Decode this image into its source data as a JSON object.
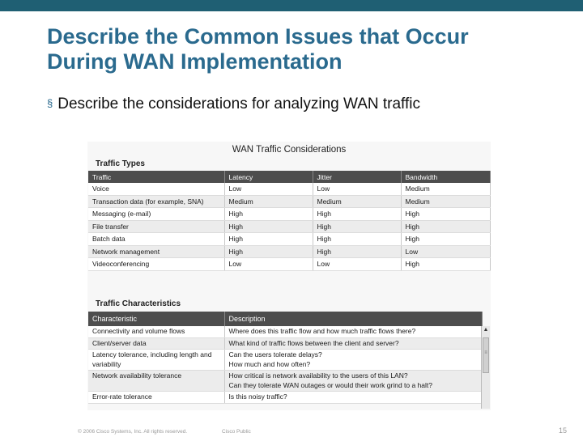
{
  "title_lines": [
    "Describe the Common Issues that Occur",
    "During WAN Implementation"
  ],
  "bullet": {
    "marker": "§",
    "text": "Describe the considerations for analyzing WAN traffic"
  },
  "panel": {
    "title": "WAN Traffic Considerations",
    "traffic_types": {
      "label": "Traffic Types",
      "headers": [
        "Traffic",
        "Latency",
        "Jitter",
        "Bandwidth"
      ],
      "rows": [
        [
          "Voice",
          "Low",
          "Low",
          "Medium"
        ],
        [
          "Transaction data (for example, SNA)",
          "Medium",
          "Medium",
          "Medium"
        ],
        [
          "Messaging (e-mail)",
          "High",
          "High",
          "High"
        ],
        [
          "File transfer",
          "High",
          "High",
          "High"
        ],
        [
          "Batch data",
          "High",
          "High",
          "High"
        ],
        [
          "Network management",
          "High",
          "High",
          "Low"
        ],
        [
          "Videoconferencing",
          "Low",
          "Low",
          "High"
        ]
      ]
    },
    "traffic_characteristics": {
      "label": "Traffic Characteristics",
      "headers": [
        "Characteristic",
        "Description"
      ],
      "rows": [
        [
          "Connectivity and volume flows",
          "Where does this traffic flow and how much traffic flows there?"
        ],
        [
          "Client/server data",
          "What kind of traffic flows between the client and server?"
        ],
        [
          "Latency tolerance, including length and variability",
          "Can the users tolerate delays?\nHow much and how often?"
        ],
        [
          "Network availability tolerance",
          "How critical is network availability to the users of this LAN?\nCan they tolerate WAN outages or would their work grind to a halt?"
        ],
        [
          "Error-rate tolerance",
          "Is this noisy traffic?"
        ]
      ]
    }
  },
  "footer": {
    "copyright": "© 2006 Cisco Systems, Inc. All rights reserved.",
    "classification": "Cisco Public",
    "page_number": "15"
  },
  "colors": {
    "topbar": "#1f5f73",
    "title": "#2a6a8e",
    "table_header": "#4d4d4d"
  }
}
